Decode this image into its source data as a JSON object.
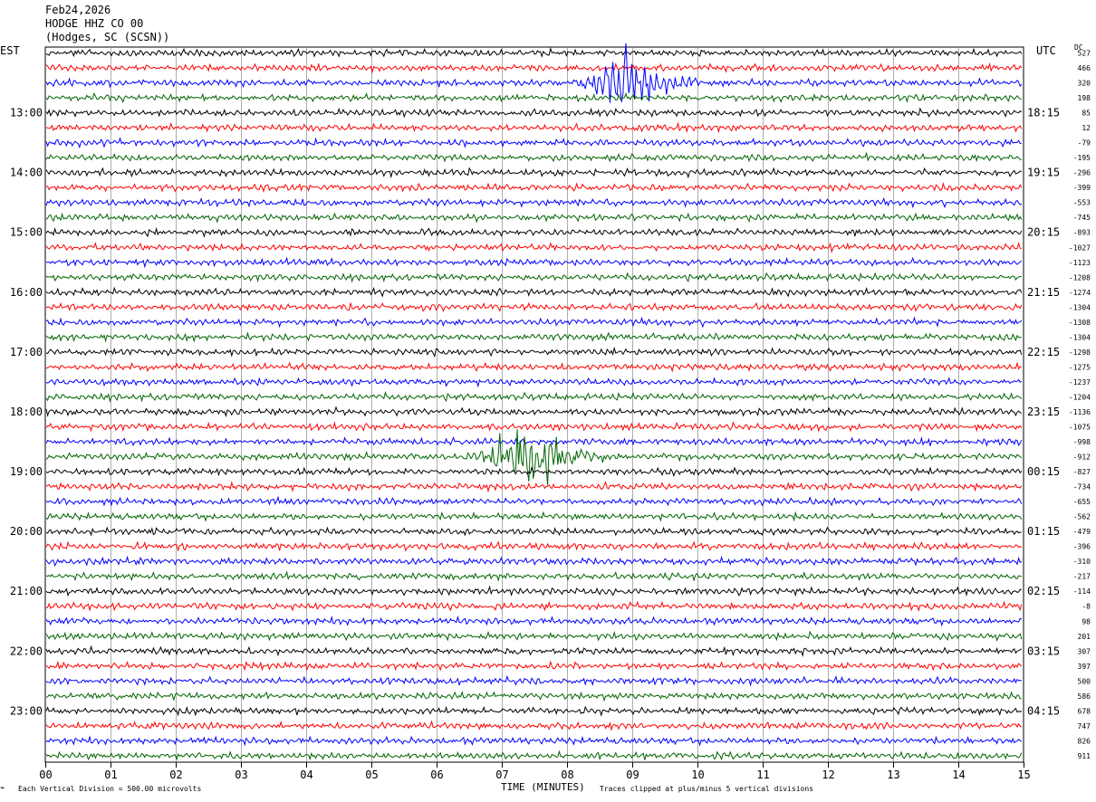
{
  "header": {
    "date": "Feb24,2026",
    "station": "HODGE HHZ CO 00",
    "location": "(Hodges, SC (SCSN))"
  },
  "left_tz": "EST",
  "right_tz": "UTC",
  "dc_label": "DC",
  "chart_data": {
    "type": "line",
    "xlabel": "TIME (MINUTES)",
    "xlim": [
      0,
      15
    ],
    "x_ticks": [
      "00",
      "01",
      "02",
      "03",
      "04",
      "05",
      "06",
      "07",
      "08",
      "09",
      "10",
      "11",
      "12",
      "13",
      "14",
      "15"
    ],
    "left_hour_labels": [
      "13:00",
      "14:00",
      "15:00",
      "16:00",
      "17:00",
      "18:00",
      "19:00",
      "20:00",
      "21:00",
      "22:00",
      "23:00"
    ],
    "right_hour_labels": [
      "18:15",
      "19:15",
      "20:15",
      "21:15",
      "22:15",
      "23:15",
      "00:15",
      "01:15",
      "02:15",
      "03:15",
      "04:15"
    ],
    "trace_colors": [
      "#000000",
      "#ff0000",
      "#0000ff",
      "#006400"
    ],
    "dc_offsets": [
      "527",
      "466",
      "320",
      "198",
      "85",
      "12",
      "-79",
      "-195",
      "-296",
      "-399",
      "-553",
      "-745",
      "-893",
      "-1027",
      "-1123",
      "-1208",
      "-1274",
      "-1304",
      "-1308",
      "-1304",
      "-1298",
      "-1275",
      "-1237",
      "-1204",
      "-1136",
      "-1075",
      "-998",
      "-912",
      "-827",
      "-734",
      "-655",
      "-562",
      "-479",
      "-396",
      "-310",
      "-217",
      "-114",
      "-8",
      "98",
      "201",
      "307",
      "397",
      "500",
      "586",
      "678",
      "747",
      "826",
      "911"
    ],
    "events": [
      {
        "trace": 2,
        "start_min": 8.0,
        "peak_min": 8.95,
        "end_min": 10.0
      },
      {
        "trace": 27,
        "start_min": 6.1,
        "peak_min": 7.5,
        "end_min": 8.6
      }
    ],
    "grid": true
  },
  "footer": {
    "scale_note": "Each Vertical Division =  500.00 microvolts",
    "clip_note": "Traces clipped at plus/minus 5 vertical divisions"
  }
}
